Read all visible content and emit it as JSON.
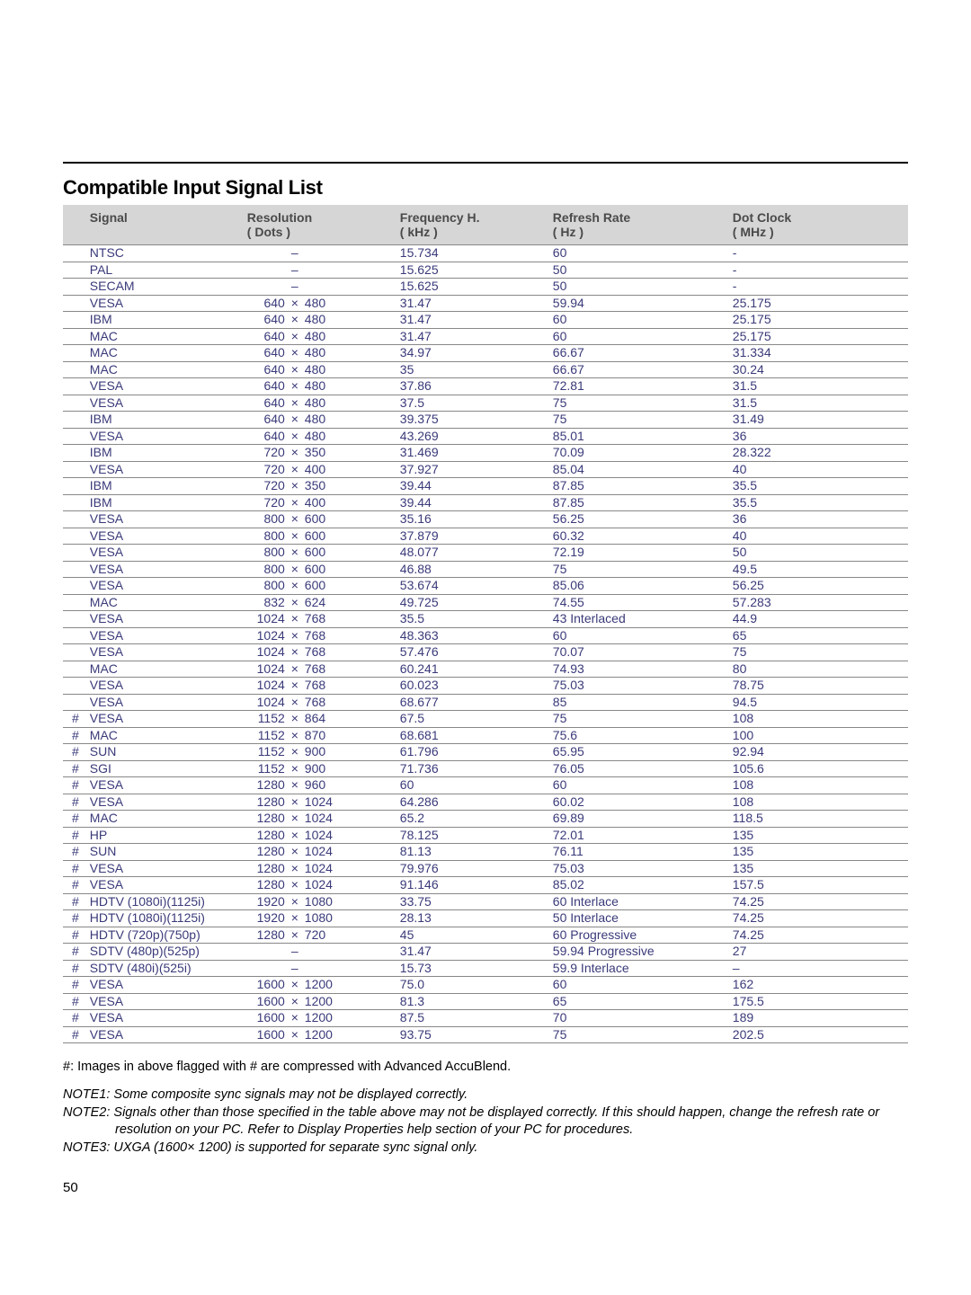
{
  "title": "Compatible Input Signal List",
  "columns": {
    "signal": "Signal",
    "resolution": "Resolution",
    "resolution_sub": "( Dots )",
    "freq": "Frequency H.",
    "freq_sub": "( kHz )",
    "rr": "Refresh Rate",
    "rr_sub": "( Hz )",
    "dc": "Dot Clock",
    "dc_sub": "( MHz )"
  },
  "rows": [
    {
      "m": "",
      "sig": "NTSC",
      "ra": "",
      "rx": "–",
      "rb": "",
      "fh": "15.734",
      "rr": "60",
      "dc": "-"
    },
    {
      "m": "",
      "sig": "PAL",
      "ra": "",
      "rx": "–",
      "rb": "",
      "fh": "15.625",
      "rr": "50",
      "dc": "-"
    },
    {
      "m": "",
      "sig": "SECAM",
      "ra": "",
      "rx": "–",
      "rb": "",
      "fh": "15.625",
      "rr": "50",
      "dc": "-"
    },
    {
      "m": "",
      "sig": "VESA",
      "ra": "640",
      "rx": "×",
      "rb": "480",
      "fh": "31.47",
      "rr": "59.94",
      "dc": "25.175"
    },
    {
      "m": "",
      "sig": "IBM",
      "ra": "640",
      "rx": "×",
      "rb": "480",
      "fh": "31.47",
      "rr": "60",
      "dc": "25.175"
    },
    {
      "m": "",
      "sig": "MAC",
      "ra": "640",
      "rx": "×",
      "rb": "480",
      "fh": "31.47",
      "rr": "60",
      "dc": "25.175"
    },
    {
      "m": "",
      "sig": "MAC",
      "ra": "640",
      "rx": "×",
      "rb": "480",
      "fh": "34.97",
      "rr": "66.67",
      "dc": "31.334"
    },
    {
      "m": "",
      "sig": "MAC",
      "ra": "640",
      "rx": "×",
      "rb": "480",
      "fh": "35",
      "rr": "66.67",
      "dc": "30.24"
    },
    {
      "m": "",
      "sig": "VESA",
      "ra": "640",
      "rx": "×",
      "rb": "480",
      "fh": "37.86",
      "rr": "72.81",
      "dc": "31.5"
    },
    {
      "m": "",
      "sig": "VESA",
      "ra": "640",
      "rx": "×",
      "rb": "480",
      "fh": "37.5",
      "rr": "75",
      "dc": "31.5"
    },
    {
      "m": "",
      "sig": "IBM",
      "ra": "640",
      "rx": "×",
      "rb": "480",
      "fh": "39.375",
      "rr": "75",
      "dc": "31.49"
    },
    {
      "m": "",
      "sig": "VESA",
      "ra": "640",
      "rx": "×",
      "rb": "480",
      "fh": "43.269",
      "rr": "85.01",
      "dc": "36"
    },
    {
      "m": "",
      "sig": "IBM",
      "ra": "720",
      "rx": "×",
      "rb": "350",
      "fh": "31.469",
      "rr": "70.09",
      "dc": "28.322"
    },
    {
      "m": "",
      "sig": "VESA",
      "ra": "720",
      "rx": "×",
      "rb": "400",
      "fh": "37.927",
      "rr": "85.04",
      "dc": "40"
    },
    {
      "m": "",
      "sig": "IBM",
      "ra": "720",
      "rx": "×",
      "rb": "350",
      "fh": "39.44",
      "rr": "87.85",
      "dc": "35.5"
    },
    {
      "m": "",
      "sig": "IBM",
      "ra": "720",
      "rx": "×",
      "rb": "400",
      "fh": "39.44",
      "rr": "87.85",
      "dc": "35.5"
    },
    {
      "m": "",
      "sig": "VESA",
      "ra": "800",
      "rx": "×",
      "rb": "600",
      "fh": "35.16",
      "rr": "56.25",
      "dc": "36"
    },
    {
      "m": "",
      "sig": "VESA",
      "ra": "800",
      "rx": "×",
      "rb": "600",
      "fh": "37.879",
      "rr": "60.32",
      "dc": "40"
    },
    {
      "m": "",
      "sig": "VESA",
      "ra": "800",
      "rx": "×",
      "rb": "600",
      "fh": "48.077",
      "rr": "72.19",
      "dc": "50"
    },
    {
      "m": "",
      "sig": "VESA",
      "ra": "800",
      "rx": "×",
      "rb": "600",
      "fh": "46.88",
      "rr": "75",
      "dc": "49.5"
    },
    {
      "m": "",
      "sig": "VESA",
      "ra": "800",
      "rx": "×",
      "rb": "600",
      "fh": "53.674",
      "rr": "85.06",
      "dc": "56.25"
    },
    {
      "m": "",
      "sig": "MAC",
      "ra": "832",
      "rx": "×",
      "rb": "624",
      "fh": "49.725",
      "rr": "74.55",
      "dc": "57.283"
    },
    {
      "m": "",
      "sig": "VESA",
      "ra": "1024",
      "rx": "×",
      "rb": "768",
      "fh": "35.5",
      "rr": "43 Interlaced",
      "dc": "44.9"
    },
    {
      "m": "",
      "sig": "VESA",
      "ra": "1024",
      "rx": "×",
      "rb": "768",
      "fh": "48.363",
      "rr": "60",
      "dc": "65"
    },
    {
      "m": "",
      "sig": "VESA",
      "ra": "1024",
      "rx": "×",
      "rb": "768",
      "fh": "57.476",
      "rr": "70.07",
      "dc": "75"
    },
    {
      "m": "",
      "sig": "MAC",
      "ra": "1024",
      "rx": "×",
      "rb": "768",
      "fh": "60.241",
      "rr": "74.93",
      "dc": "80"
    },
    {
      "m": "",
      "sig": "VESA",
      "ra": "1024",
      "rx": "×",
      "rb": "768",
      "fh": "60.023",
      "rr": "75.03",
      "dc": "78.75"
    },
    {
      "m": "",
      "sig": "VESA",
      "ra": "1024",
      "rx": "×",
      "rb": "768",
      "fh": "68.677",
      "rr": "85",
      "dc": "94.5"
    },
    {
      "m": "#",
      "sig": "VESA",
      "ra": "1152",
      "rx": "×",
      "rb": "864",
      "fh": "67.5",
      "rr": "75",
      "dc": "108"
    },
    {
      "m": "#",
      "sig": "MAC",
      "ra": "1152",
      "rx": "×",
      "rb": "870",
      "fh": "68.681",
      "rr": "75.6",
      "dc": "100"
    },
    {
      "m": "#",
      "sig": "SUN",
      "ra": "1152",
      "rx": "×",
      "rb": "900",
      "fh": "61.796",
      "rr": "65.95",
      "dc": "92.94"
    },
    {
      "m": "#",
      "sig": "SGI",
      "ra": "1152",
      "rx": "×",
      "rb": "900",
      "fh": "71.736",
      "rr": "76.05",
      "dc": "105.6"
    },
    {
      "m": "#",
      "sig": "VESA",
      "ra": "1280",
      "rx": "×",
      "rb": "960",
      "fh": "60",
      "rr": "60",
      "dc": "108"
    },
    {
      "m": "#",
      "sig": "VESA",
      "ra": "1280",
      "rx": "×",
      "rb": "1024",
      "fh": "64.286",
      "rr": "60.02",
      "dc": "108"
    },
    {
      "m": "#",
      "sig": "MAC",
      "ra": "1280",
      "rx": "×",
      "rb": "1024",
      "fh": "65.2",
      "rr": "69.89",
      "dc": "118.5"
    },
    {
      "m": "#",
      "sig": "HP",
      "ra": "1280",
      "rx": "×",
      "rb": "1024",
      "fh": "78.125",
      "rr": "72.01",
      "dc": "135"
    },
    {
      "m": "#",
      "sig": "SUN",
      "ra": "1280",
      "rx": "×",
      "rb": "1024",
      "fh": "81.13",
      "rr": "76.11",
      "dc": "135"
    },
    {
      "m": "#",
      "sig": "VESA",
      "ra": "1280",
      "rx": "×",
      "rb": "1024",
      "fh": "79.976",
      "rr": "75.03",
      "dc": "135"
    },
    {
      "m": "#",
      "sig": "VESA",
      "ra": "1280",
      "rx": "×",
      "rb": "1024",
      "fh": "91.146",
      "rr": "85.02",
      "dc": "157.5"
    },
    {
      "m": "#",
      "sig": "HDTV (1080i)(1125i)",
      "ra": "1920",
      "rx": "×",
      "rb": "1080",
      "fh": "33.75",
      "rr": "60 Interlace",
      "dc": "74.25"
    },
    {
      "m": "#",
      "sig": "HDTV (1080i)(1125i)",
      "ra": "1920",
      "rx": "×",
      "rb": "1080",
      "fh": "28.13",
      "rr": "50 Interlace",
      "dc": "74.25"
    },
    {
      "m": "#",
      "sig": "HDTV (720p)(750p)",
      "ra": "1280",
      "rx": "×",
      "rb": "720",
      "fh": "45",
      "rr": "60 Progressive",
      "dc": "74.25"
    },
    {
      "m": "#",
      "sig": "SDTV (480p)(525p)",
      "ra": "",
      "rx": "–",
      "rb": "",
      "fh": "31.47",
      "rr": "59.94 Progressive",
      "dc": "27"
    },
    {
      "m": "#",
      "sig": "SDTV (480i)(525i)",
      "ra": "",
      "rx": "–",
      "rb": "",
      "fh": "15.73",
      "rr": "59.9 Interlace",
      "dc": "–"
    },
    {
      "m": "#",
      "sig": "VESA",
      "ra": "1600",
      "rx": "×",
      "rb": "1200",
      "fh": "75.0",
      "rr": "60",
      "dc": "162"
    },
    {
      "m": "#",
      "sig": "VESA",
      "ra": "1600",
      "rx": "×",
      "rb": "1200",
      "fh": "81.3",
      "rr": "65",
      "dc": "175.5"
    },
    {
      "m": "#",
      "sig": "VESA",
      "ra": "1600",
      "rx": "×",
      "rb": "1200",
      "fh": "87.5",
      "rr": "70",
      "dc": "189"
    },
    {
      "m": "#",
      "sig": "VESA",
      "ra": "1600",
      "rx": "×",
      "rb": "1200",
      "fh": "93.75",
      "rr": "75",
      "dc": "202.5"
    }
  ],
  "footnote": "#: Images in above flagged with # are compressed with Advanced AccuBlend.",
  "note1": "NOTE1: Some composite sync signals may not be displayed correctly.",
  "note2a": "NOTE2: Signals other than those specified in the table above may not be displayed correctly. If this should happen, change the refresh rate or",
  "note2b": "resolution on your PC. Refer to Display Properties help section of your PC for procedures.",
  "note3": "NOTE3: UXGA (1600× 1200) is supported for separate sync signal only.",
  "pagenum": "50"
}
